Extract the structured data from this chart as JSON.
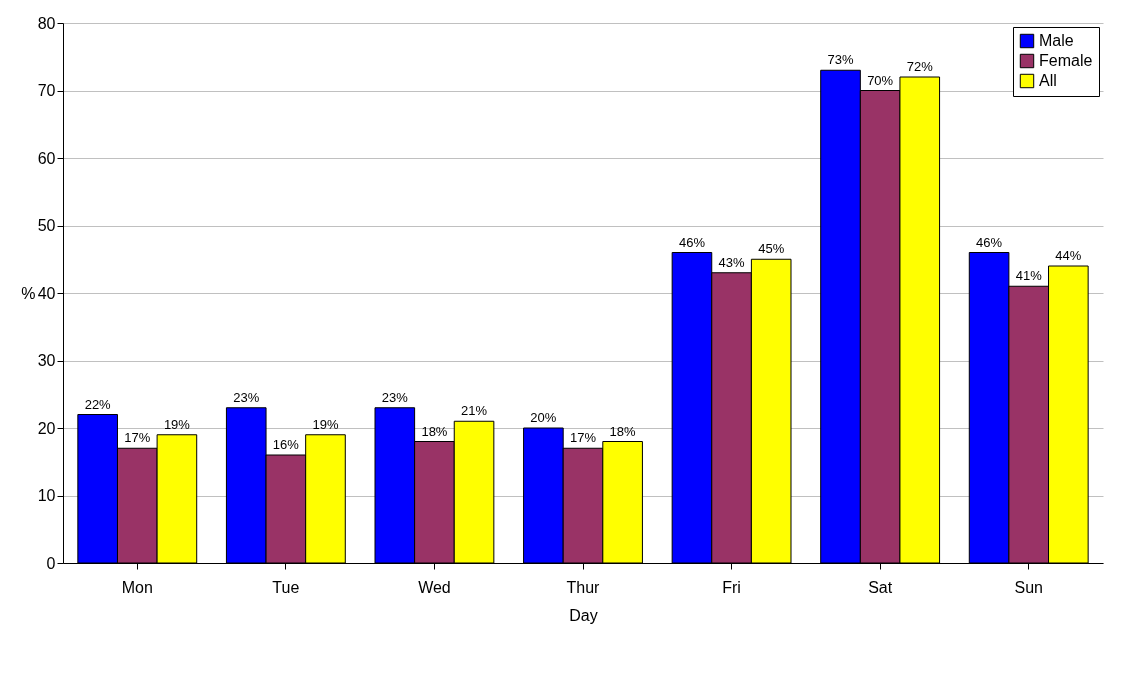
{
  "chart_data": {
    "type": "bar",
    "xlabel": "Day",
    "ylabel": "%",
    "categories": [
      "Mon",
      "Tue",
      "Wed",
      "Thur",
      "Fri",
      "Sat",
      "Sun"
    ],
    "series": [
      {
        "name": "Male",
        "color": "#0000ff",
        "values": [
          22,
          23,
          23,
          20,
          46,
          73,
          46
        ],
        "value_labels": [
          "22%",
          "23%",
          "23%",
          "20%",
          "46%",
          "73%",
          "46%"
        ]
      },
      {
        "name": "Female",
        "color": "#993366",
        "values": [
          17,
          16,
          18,
          17,
          43,
          70,
          41
        ],
        "value_labels": [
          "17%",
          "16%",
          "18%",
          "17%",
          "43%",
          "70%",
          "41%"
        ]
      },
      {
        "name": "All",
        "color": "#ffff00",
        "values": [
          19,
          19,
          21,
          18,
          45,
          72,
          44
        ],
        "value_labels": [
          "19%",
          "19%",
          "21%",
          "18%",
          "45%",
          "72%",
          "44%"
        ]
      }
    ],
    "ylim": [
      0,
      80
    ],
    "yticks": [
      0,
      10,
      20,
      30,
      40,
      50,
      60,
      70,
      80
    ],
    "grid": "y",
    "legend": "top right"
  }
}
